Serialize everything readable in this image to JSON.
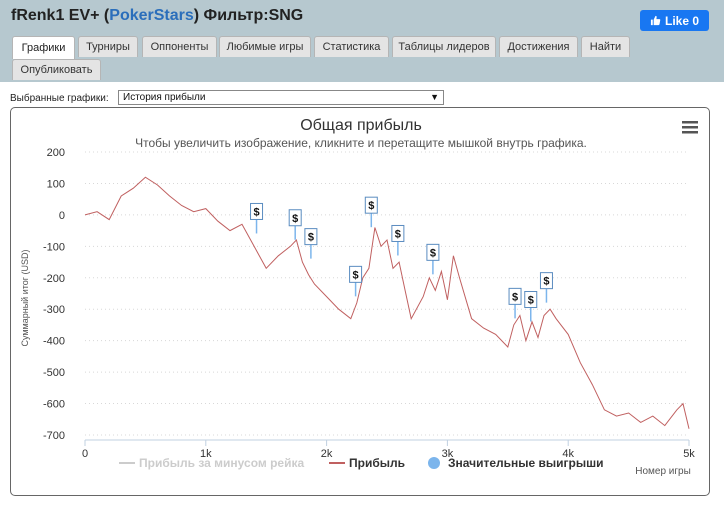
{
  "header": {
    "user": "fRenk1 EV+ (",
    "site": "PokerStars",
    "filter": ") Фильтр:SNG",
    "like_label": "Like 0"
  },
  "tabs": [
    {
      "label": "Графики",
      "active": true
    },
    {
      "label": "Турниры"
    },
    {
      "label": "Оппоненты"
    },
    {
      "label": "Любимые игры"
    },
    {
      "label": "Статистика"
    },
    {
      "label": "Таблицы лидеров"
    },
    {
      "label": "Достижения"
    },
    {
      "label": "Найти"
    },
    {
      "label": "Опубликовать"
    }
  ],
  "selector": {
    "label": "Выбранные графики:",
    "value": "История прибыли"
  },
  "chart_data": {
    "type": "line",
    "title": "Общая прибыль",
    "subtitle": "Чтобы увеличить изображение, кликните и перетащите мышкой внутрь графика.",
    "ylabel": "Суммарный итог (USD)",
    "xlabel": "Номер игры",
    "ylim": [
      -700,
      200
    ],
    "xlim": [
      0,
      5000
    ],
    "y_ticks": [
      "200",
      "100",
      "0",
      "-100",
      "-200",
      "-300",
      "-400",
      "-500",
      "-600",
      "-700"
    ],
    "x_ticks": [
      "0",
      "1k",
      "2k",
      "3k",
      "4k",
      "5k"
    ],
    "grid": true,
    "legend_position": "bottom",
    "legend": [
      {
        "name": "Прибыль за минусом рейка",
        "color": "#cccccc",
        "hidden": true
      },
      {
        "name": "Прибыль",
        "color": "#c06060"
      },
      {
        "name": "Значительные выигрыши",
        "color": "#7cb5ec"
      }
    ],
    "series": [
      {
        "name": "Прибыль",
        "color": "#c06060",
        "x": [
          0,
          100,
          200,
          300,
          400,
          500,
          600,
          700,
          800,
          900,
          1000,
          1100,
          1200,
          1300,
          1400,
          1500,
          1600,
          1700,
          1750,
          1800,
          1850,
          1900,
          2000,
          2100,
          2200,
          2250,
          2300,
          2350,
          2400,
          2450,
          2500,
          2550,
          2600,
          2650,
          2700,
          2800,
          2850,
          2900,
          2950,
          3000,
          3050,
          3100,
          3200,
          3300,
          3400,
          3500,
          3550,
          3600,
          3650,
          3700,
          3750,
          3800,
          3850,
          3900,
          4000,
          4100,
          4200,
          4300,
          4400,
          4500,
          4600,
          4700,
          4800,
          4900,
          4950,
          5000
        ],
        "values": [
          0,
          10,
          -15,
          60,
          85,
          120,
          95,
          60,
          30,
          10,
          20,
          -20,
          -50,
          -30,
          -100,
          -170,
          -130,
          -100,
          -80,
          -150,
          -190,
          -220,
          -260,
          -300,
          -330,
          -280,
          -200,
          -170,
          -40,
          -100,
          -80,
          -170,
          -150,
          -240,
          -330,
          -260,
          -200,
          -240,
          -180,
          -270,
          -130,
          -200,
          -330,
          -360,
          -380,
          -420,
          -350,
          -320,
          -400,
          -340,
          -390,
          -320,
          -300,
          -330,
          -380,
          -470,
          -540,
          -620,
          -640,
          -630,
          -660,
          -640,
          -670,
          -620,
          -600,
          -680
        ]
      },
      {
        "name": "Значительные выигрыши",
        "color": "#7cb5ec",
        "markers": [
          {
            "x": 1420,
            "y": -40,
            "label": "$"
          },
          {
            "x": 1740,
            "y": -60,
            "label": "$"
          },
          {
            "x": 1870,
            "y": -120,
            "label": "$"
          },
          {
            "x": 2240,
            "y": -240,
            "label": "$"
          },
          {
            "x": 2370,
            "y": -20,
            "label": "$"
          },
          {
            "x": 2590,
            "y": -110,
            "label": "$"
          },
          {
            "x": 2880,
            "y": -170,
            "label": "$"
          },
          {
            "x": 3560,
            "y": -310,
            "label": "$"
          },
          {
            "x": 3690,
            "y": -320,
            "label": "$"
          },
          {
            "x": 3820,
            "y": -260,
            "label": "$"
          }
        ]
      }
    ]
  }
}
